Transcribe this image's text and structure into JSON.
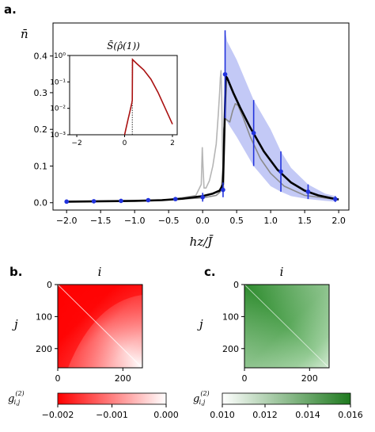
{
  "panels": {
    "a": "a.",
    "b": "b.",
    "c": "c."
  },
  "chart_data": [
    {
      "id": "main",
      "type": "line",
      "ylabel": "n̄",
      "xlabel": "hz/J̄",
      "xlim": [
        -2.2,
        2.15
      ],
      "ylim": [
        -0.02,
        0.49
      ],
      "xticks": [
        -2.0,
        -1.5,
        -1.0,
        -0.5,
        0.0,
        0.5,
        1.0,
        1.5,
        2.0
      ],
      "xtick_labels": [
        "−2.0",
        "−1.5",
        "−1.0",
        "−0.5",
        "0.0",
        "0.5",
        "1.0",
        "1.5",
        "2.0"
      ],
      "yticks": [
        0.0,
        0.1,
        0.2,
        0.3,
        0.4
      ],
      "ytick_labels": [
        "0.0",
        "0.1",
        "0.2",
        "0.3",
        "0.4"
      ],
      "grid": false,
      "series": [
        {
          "style": "black-thick",
          "color": "#000000",
          "x": [
            -2.0,
            -1.5,
            -1.0,
            -0.6,
            -0.3,
            0.0,
            0.15,
            0.25,
            0.3,
            0.32,
            0.34,
            0.36,
            0.45,
            0.55,
            0.7,
            0.9,
            1.1,
            1.3,
            1.5,
            1.7,
            1.9,
            2.0
          ],
          "y": [
            0.003,
            0.004,
            0.005,
            0.007,
            0.011,
            0.018,
            0.025,
            0.033,
            0.05,
            0.2,
            0.345,
            0.34,
            0.3,
            0.26,
            0.205,
            0.14,
            0.09,
            0.055,
            0.033,
            0.02,
            0.012,
            0.009
          ]
        },
        {
          "style": "gray-dark",
          "color": "#8a8a8a",
          "x": [
            -2.0,
            -1.0,
            -0.5,
            0.0,
            0.2,
            0.26,
            0.28,
            0.3,
            0.31,
            0.33,
            0.36,
            0.4,
            0.44,
            0.48,
            0.52,
            0.6,
            0.7,
            0.85,
            1.0,
            1.2,
            1.5,
            2.0
          ],
          "y": [
            0.003,
            0.005,
            0.008,
            0.013,
            0.02,
            0.03,
            0.05,
            0.1,
            0.2,
            0.23,
            0.225,
            0.22,
            0.25,
            0.27,
            0.265,
            0.23,
            0.18,
            0.12,
            0.08,
            0.045,
            0.02,
            0.008
          ]
        },
        {
          "style": "gray-light",
          "color": "#b5b5b5",
          "x": [
            -2.0,
            -1.0,
            -0.5,
            -0.1,
            -0.02,
            -0.005,
            0.005,
            0.02,
            0.05,
            0.1,
            0.15,
            0.2,
            0.23,
            0.25,
            0.26,
            0.27,
            0.28,
            0.29,
            0.3,
            0.31
          ],
          "y": [
            0.003,
            0.005,
            0.008,
            0.02,
            0.05,
            0.15,
            0.1,
            0.04,
            0.04,
            0.06,
            0.1,
            0.16,
            0.24,
            0.3,
            0.34,
            0.36,
            0.3,
            0.15,
            0.06,
            0.04
          ]
        }
      ],
      "markers": {
        "color": "#2233dd",
        "x": [
          -2.0,
          -1.6,
          -1.2,
          -0.8,
          -0.4,
          0.0,
          0.3,
          0.33,
          0.75,
          1.15,
          1.55,
          1.95
        ],
        "y": [
          0.003,
          0.004,
          0.005,
          0.007,
          0.01,
          0.015,
          0.035,
          0.35,
          0.19,
          0.085,
          0.03,
          0.01
        ],
        "err": [
          0.002,
          0.002,
          0.002,
          0.003,
          0.005,
          0.012,
          0.02,
          0.12,
          0.09,
          0.055,
          0.02,
          0.008
        ]
      },
      "band": {
        "color": "#b8c0f5",
        "x": [
          0.3,
          0.33,
          0.36,
          0.5,
          0.75,
          1.0,
          1.15,
          1.3,
          1.55,
          1.8,
          1.95
        ],
        "lower": [
          0.03,
          0.23,
          0.22,
          0.18,
          0.1,
          0.045,
          0.03,
          0.018,
          0.01,
          0.005,
          0.003
        ],
        "upper": [
          0.05,
          0.47,
          0.44,
          0.39,
          0.28,
          0.2,
          0.14,
          0.095,
          0.05,
          0.025,
          0.018
        ]
      }
    },
    {
      "id": "inset",
      "type": "line",
      "title": "S̄(ρ̂(1))",
      "yscale": "log",
      "xlim": [
        -2.3,
        2.2
      ],
      "ylim_log10": [
        -3,
        0
      ],
      "xticks": [
        -2,
        0,
        2
      ],
      "xtick_labels": [
        "−2",
        "0",
        "2"
      ],
      "yticks_log10": [
        -3,
        -2,
        -1,
        0
      ],
      "ytick_labels": [
        "10⁻³",
        "10⁻²",
        "10⁻¹",
        "10⁰"
      ],
      "vline_x": 0.32,
      "series": [
        {
          "color": "#aa1111",
          "x": [
            0.0,
            0.05,
            0.1,
            0.15,
            0.2,
            0.25,
            0.3,
            0.32,
            0.33,
            0.5,
            0.8,
            1.1,
            1.4,
            1.7,
            2.0
          ],
          "log10y": [
            -3.0,
            -2.8,
            -2.6,
            -2.4,
            -2.2,
            -2.0,
            -1.8,
            -1.7,
            -0.15,
            -0.3,
            -0.55,
            -0.9,
            -1.4,
            -2.0,
            -2.6
          ]
        }
      ]
    },
    {
      "id": "heatmap-b",
      "type": "heatmap",
      "title": "i",
      "ylabel": "j",
      "xticks": [
        "0",
        "200"
      ],
      "yticks": [
        "0",
        "100",
        "200"
      ],
      "colorbar": {
        "label": "g(2)i,j",
        "ticks": [
          "−0.002",
          "−0.001",
          "0.000"
        ],
        "range": [
          -0.002,
          0.0
        ],
        "colors": [
          "#ff0000",
          "#ffffff"
        ]
      }
    },
    {
      "id": "heatmap-c",
      "type": "heatmap",
      "title": "i",
      "ylabel": "j",
      "xticks": [
        "0",
        "200"
      ],
      "yticks": [
        "0",
        "100",
        "200"
      ],
      "colorbar": {
        "label": "g(2)i,j",
        "ticks": [
          "0.010",
          "0.012",
          "0.014",
          "0.016"
        ],
        "range": [
          0.01,
          0.016
        ],
        "colors": [
          "#ffffff",
          "#1f7a1f"
        ]
      }
    }
  ]
}
